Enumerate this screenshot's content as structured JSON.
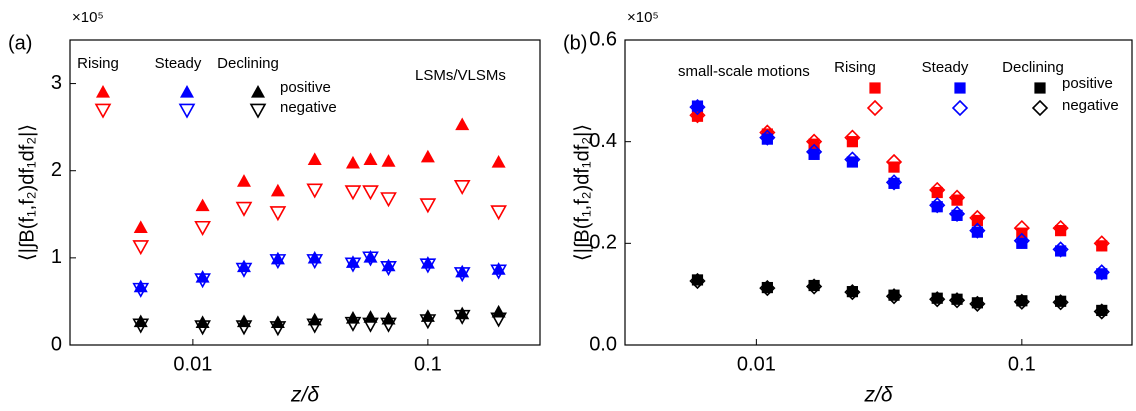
{
  "chart_data": [
    {
      "type": "scatter",
      "panel_label": "(a)",
      "y_multiplier": "×10⁵",
      "annotation": "LSMs/VLSMs",
      "xlabel": "z/δ",
      "ylabel": "⟨|∫B(f₁,f₂)df₁df₂|⟩",
      "xscale": "log",
      "xlim": [
        0.003,
        0.3
      ],
      "xticks": [
        0.01,
        0.1
      ],
      "ylim": [
        0,
        3.5
      ],
      "yticks": [
        0,
        1,
        2,
        3
      ],
      "x": [
        0.006,
        0.011,
        0.0165,
        0.023,
        0.033,
        0.048,
        0.057,
        0.068,
        0.1,
        0.14,
        0.2
      ],
      "series": [
        {
          "name": "Rising",
          "sign": "positive",
          "color": "#ff0000",
          "marker": "triangle-up",
          "values": [
            1.35,
            1.6,
            1.88,
            1.77,
            2.13,
            2.09,
            2.13,
            2.11,
            2.16,
            2.53,
            2.1
          ]
        },
        {
          "name": "Rising",
          "sign": "negative",
          "color": "#ff0000",
          "marker": "triangle-down-open",
          "values": [
            1.13,
            1.35,
            1.57,
            1.52,
            1.78,
            1.76,
            1.76,
            1.68,
            1.61,
            1.82,
            1.53
          ]
        },
        {
          "name": "Steady",
          "sign": "positive",
          "color": "#0000ff",
          "marker": "triangle-up",
          "values": [
            0.67,
            0.78,
            0.9,
            0.99,
            1.0,
            0.95,
            1.01,
            0.91,
            0.94,
            0.84,
            0.87
          ]
        },
        {
          "name": "Steady",
          "sign": "negative",
          "color": "#0000ff",
          "marker": "triangle-down-open",
          "values": [
            0.64,
            0.75,
            0.87,
            0.97,
            0.97,
            0.93,
            1.0,
            0.89,
            0.92,
            0.82,
            0.85
          ]
        },
        {
          "name": "Declining",
          "sign": "positive",
          "color": "#000000",
          "marker": "triangle-up",
          "values": [
            0.27,
            0.26,
            0.27,
            0.26,
            0.29,
            0.31,
            0.32,
            0.3,
            0.33,
            0.36,
            0.38
          ]
        },
        {
          "name": "Declining",
          "sign": "negative",
          "color": "#000000",
          "marker": "triangle-down-open",
          "values": [
            0.23,
            0.21,
            0.21,
            0.2,
            0.23,
            0.25,
            0.24,
            0.24,
            0.28,
            0.33,
            0.3
          ]
        }
      ]
    },
    {
      "type": "scatter",
      "panel_label": "(b)",
      "y_multiplier": "×10⁵",
      "annotation": "small-scale motions",
      "xlabel": "z/δ",
      "ylabel": "⟨|∫B(f₁,f₂)df₁df₂|⟩",
      "xscale": "log",
      "xlim": [
        0.0032,
        0.26
      ],
      "xticks": [
        0.01,
        0.1
      ],
      "ylim": [
        0,
        0.6
      ],
      "yticks": [
        {
          "value": 0,
          "label": "0.0"
        },
        0.2,
        0.4,
        0.6
      ],
      "x": [
        0.006,
        0.011,
        0.0165,
        0.023,
        0.033,
        0.048,
        0.057,
        0.068,
        0.1,
        0.14,
        0.2
      ],
      "series": [
        {
          "name": "Rising",
          "sign": "positive",
          "color": "#ff0000",
          "marker": "square",
          "values": [
            0.45,
            0.415,
            0.395,
            0.4,
            0.35,
            0.3,
            0.285,
            0.245,
            0.22,
            0.225,
            0.195
          ]
        },
        {
          "name": "Rising",
          "sign": "negative",
          "color": "#ff0000",
          "marker": "diamond-open",
          "values": [
            0.452,
            0.418,
            0.4,
            0.408,
            0.36,
            0.305,
            0.29,
            0.25,
            0.23,
            0.23,
            0.2
          ]
        },
        {
          "name": "Steady",
          "sign": "positive",
          "color": "#0000ff",
          "marker": "square",
          "values": [
            0.47,
            0.405,
            0.375,
            0.36,
            0.318,
            0.272,
            0.255,
            0.222,
            0.2,
            0.185,
            0.14
          ]
        },
        {
          "name": "Steady",
          "sign": "negative",
          "color": "#0000ff",
          "marker": "diamond-open",
          "values": [
            0.468,
            0.408,
            0.38,
            0.365,
            0.32,
            0.275,
            0.258,
            0.225,
            0.205,
            0.188,
            0.143
          ]
        },
        {
          "name": "Declining",
          "sign": "positive",
          "color": "#000000",
          "marker": "square",
          "values": [
            0.128,
            0.113,
            0.117,
            0.105,
            0.098,
            0.092,
            0.09,
            0.083,
            0.087,
            0.086,
            0.068
          ]
        },
        {
          "name": "Declining",
          "sign": "negative",
          "color": "#000000",
          "marker": "diamond-open",
          "values": [
            0.126,
            0.112,
            0.115,
            0.104,
            0.096,
            0.09,
            0.088,
            0.081,
            0.085,
            0.084,
            0.066
          ]
        }
      ]
    }
  ]
}
